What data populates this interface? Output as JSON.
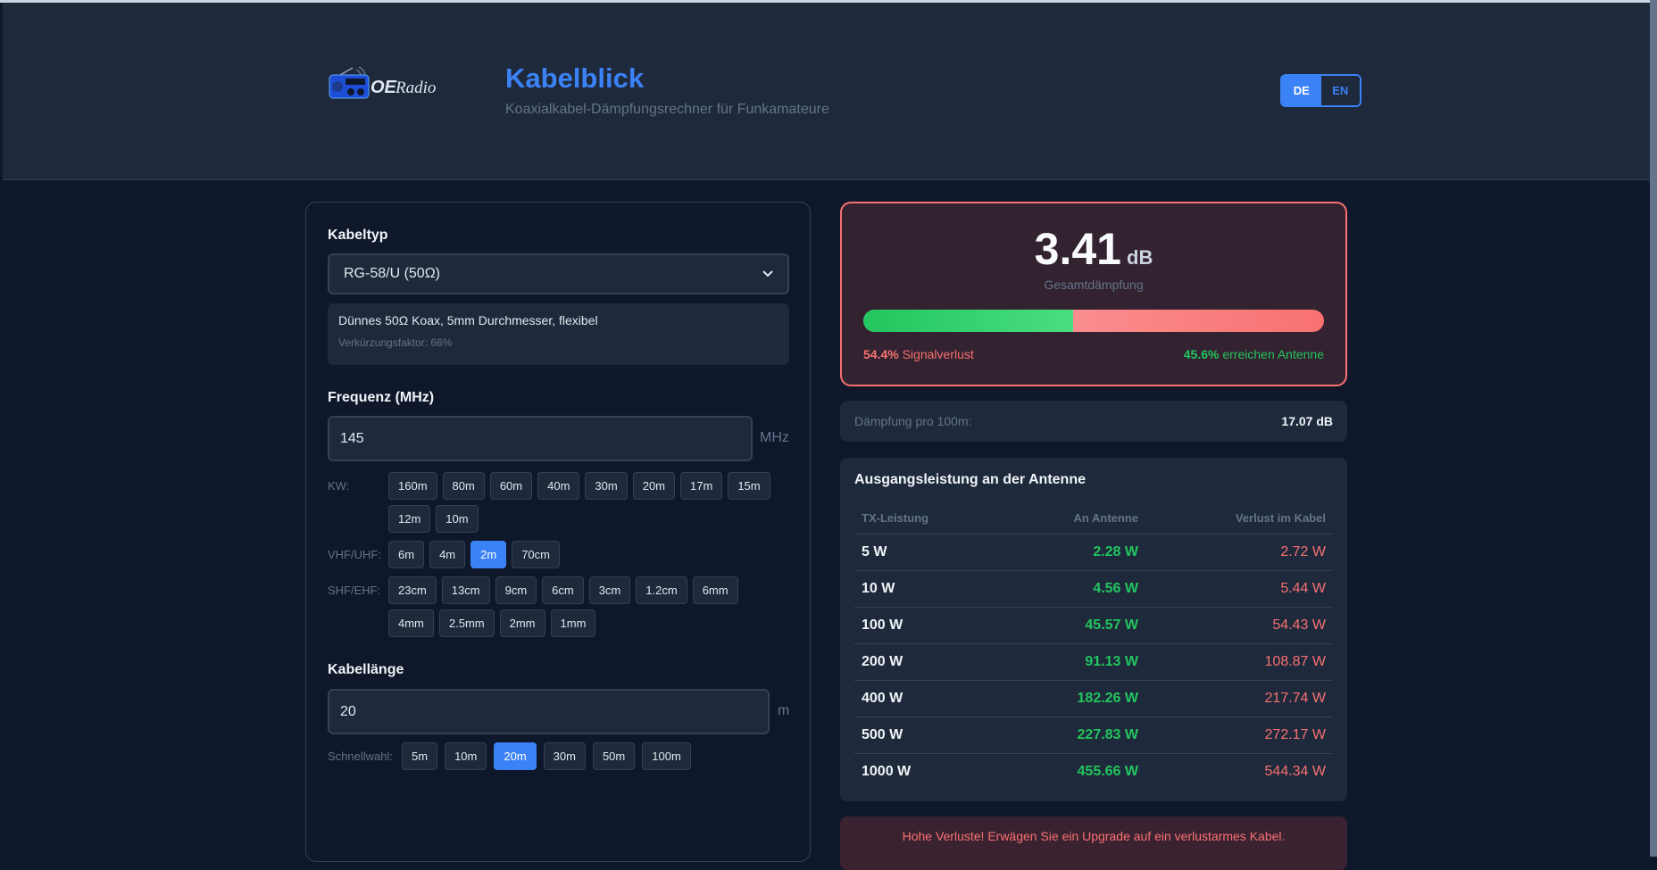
{
  "header": {
    "logo_text": "OERadio",
    "title": "Kabelblick",
    "subtitle": "Koaxialkabel-Dämpfungsrechner für Funkamateure",
    "languages": [
      {
        "label": "DE",
        "active": true
      },
      {
        "label": "EN",
        "active": false
      }
    ]
  },
  "cable": {
    "label": "Kabeltyp",
    "selected": "RG-58/U (50Ω)",
    "description": "Dünnes 50Ω Koax, 5mm Durchmesser, flexibel",
    "velocity": "Verkürzungsfaktor: 66%"
  },
  "frequency": {
    "label": "Frequenz (MHz)",
    "value": "145",
    "unit": "MHz",
    "groups": [
      {
        "label": "KW:",
        "bands": [
          "160m",
          "80m",
          "60m",
          "40m",
          "30m",
          "20m",
          "17m",
          "15m",
          "12m",
          "10m"
        ]
      },
      {
        "label": "VHF/UHF:",
        "bands": [
          "6m",
          "4m",
          "2m",
          "70cm"
        ]
      },
      {
        "label": "SHF/EHF:",
        "bands": [
          "23cm",
          "13cm",
          "9cm",
          "6cm",
          "3cm",
          "1.2cm",
          "6mm",
          "4mm",
          "2.5mm",
          "2mm",
          "1mm"
        ]
      }
    ],
    "active_band": "2m"
  },
  "length": {
    "label": "Kabellänge",
    "value": "20",
    "unit": "m",
    "quick_label": "Schnellwahl:",
    "quick": [
      "5m",
      "10m",
      "20m",
      "30m",
      "50m",
      "100m"
    ],
    "active": "20m"
  },
  "result": {
    "attenuation": "3.41",
    "unit": "dB",
    "label": "Gesamtdämpfung",
    "loss_pct": "54.4%",
    "loss_text": "Signalverlust",
    "reach_pct": "45.6%",
    "reach_text": "erreichen Antenne",
    "reach_fraction": 0.456
  },
  "per100": {
    "label": "Dämpfung pro 100m:",
    "value": "17.07 dB"
  },
  "table": {
    "title": "Ausgangsleistung an der Antenne",
    "headers": [
      "TX-Leistung",
      "An Antenne",
      "Verlust im Kabel"
    ],
    "rows": [
      [
        "5 W",
        "2.28 W",
        "2.72 W"
      ],
      [
        "10 W",
        "4.56 W",
        "5.44 W"
      ],
      [
        "100 W",
        "45.57 W",
        "54.43 W"
      ],
      [
        "200 W",
        "91.13 W",
        "108.87 W"
      ],
      [
        "400 W",
        "182.26 W",
        "217.74 W"
      ],
      [
        "500 W",
        "227.83 W",
        "272.17 W"
      ],
      [
        "1000 W",
        "455.66 W",
        "544.34 W"
      ]
    ]
  },
  "warning": "Hohe Verluste! Erwägen Sie ein Upgrade auf ein verlustarmes Kabel.",
  "colors": {
    "accent": "#3b82f6",
    "good": "#22c55e",
    "bad": "#f87171",
    "background": "#0f172a",
    "panel": "#1e293b"
  }
}
